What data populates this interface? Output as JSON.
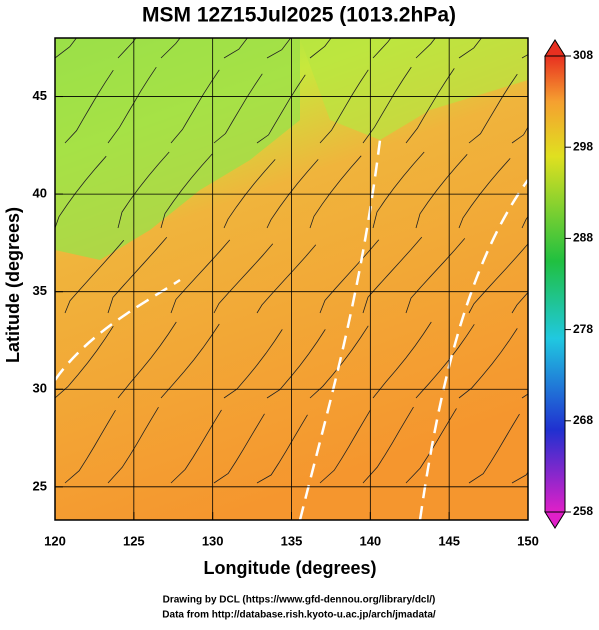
{
  "chart_data": {
    "type": "map",
    "title": "MSM 12Z15Jul2025 (1013.2hPa)",
    "x_label": "Longitude (degrees)",
    "y_label": "Latitude  (degrees)",
    "xlim": [
      120,
      150
    ],
    "ylim": [
      23.3,
      48
    ],
    "xticks": [
      120,
      125,
      130,
      135,
      140,
      145,
      150
    ],
    "yticks": [
      25,
      30,
      35,
      40,
      45
    ],
    "grid": true,
    "colorbar": {
      "lim": [
        258,
        308
      ],
      "ticks": [
        258,
        268,
        278,
        288,
        298,
        308
      ]
    }
  },
  "footer": [
    "Drawing by DCL (https://www.gfd-dennou.org/library/dcl/)",
    "Data from http://database.rish.kyoto-u.ac.jp/arch/jmadata/"
  ]
}
